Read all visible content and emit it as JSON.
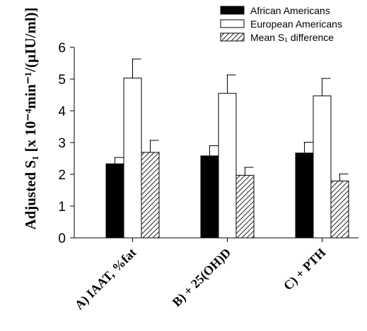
{
  "chart_data": {
    "type": "bar",
    "title": "",
    "xlabel": "",
    "ylabel": "Adjusted S₁ [x 10⁻⁴min⁻¹/(µIU/ml)]",
    "ylim": [
      0,
      6
    ],
    "yticks": [
      "0",
      "1",
      "2",
      "3",
      "4",
      "5",
      "6"
    ],
    "categories": [
      "A) IAAT, %fat",
      "B) + 25(OH)D",
      "C) + PTH"
    ],
    "series": [
      {
        "name": "African Americans",
        "fill": "black",
        "values": [
          2.33,
          2.58,
          2.67
        ],
        "errors": [
          0.2,
          0.32,
          0.34
        ]
      },
      {
        "name": "European Americans",
        "fill": "white",
        "values": [
          5.03,
          4.55,
          4.47
        ],
        "errors": [
          0.6,
          0.58,
          0.55
        ]
      },
      {
        "name": "Mean S₁ difference",
        "fill": "hatch",
        "values": [
          2.69,
          1.97,
          1.79
        ],
        "errors": [
          0.38,
          0.25,
          0.22
        ]
      }
    ],
    "legend_position": "top-right",
    "error_bars": "upper"
  }
}
